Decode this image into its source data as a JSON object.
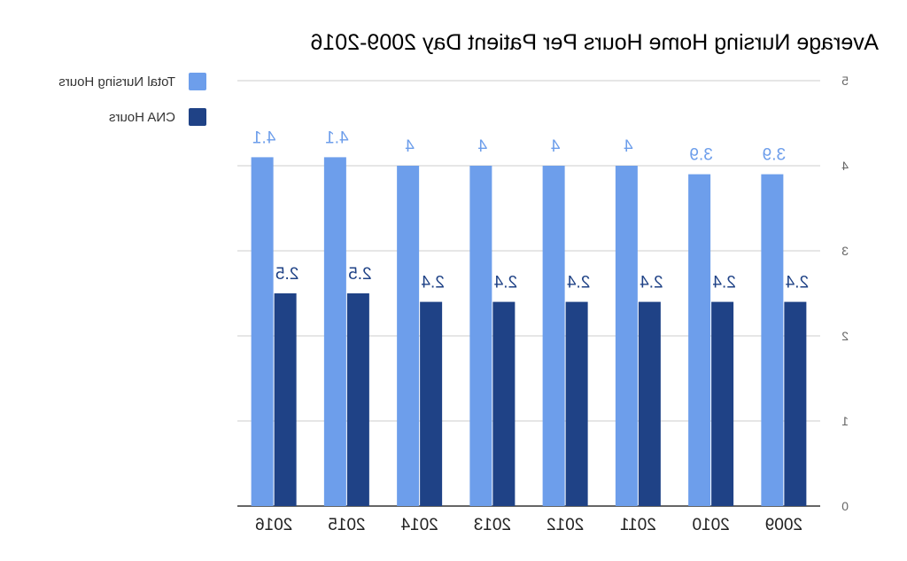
{
  "chart_data": {
    "type": "bar",
    "title": "Average Nursing Home Hours Per Patient Day 2009-2016",
    "xlabel": "",
    "ylabel": "",
    "categories": [
      "2009",
      "2010",
      "2011",
      "2012",
      "2013",
      "2014",
      "2015",
      "2016"
    ],
    "series": [
      {
        "name": "CNA Hours",
        "color": "#1f4286",
        "values": [
          2.4,
          2.4,
          2.4,
          2.4,
          2.4,
          2.4,
          2.5,
          2.5
        ],
        "labels": [
          "2.4",
          "2.4",
          "2.4",
          "2.4",
          "2.4",
          "2.4",
          "2.5",
          "2.5"
        ]
      },
      {
        "name": "Total Nursing Hours",
        "color": "#6d9eeb",
        "values": [
          3.9,
          3.9,
          4,
          4,
          4,
          4,
          4.1,
          4.1
        ],
        "labels": [
          "3.9",
          "3.9",
          "4",
          "4",
          "4",
          "4",
          "4.1",
          "4.1"
        ]
      }
    ],
    "ylim": [
      0,
      5
    ],
    "yticks": [
      0,
      1,
      2,
      3,
      4,
      5
    ],
    "grid": true,
    "legend": "right",
    "mirrored": true,
    "colors": {
      "grid": "#cccccc",
      "axis": "#333333",
      "tick_label": "#666666",
      "category_label": "#222222",
      "title": "#000000"
    }
  }
}
